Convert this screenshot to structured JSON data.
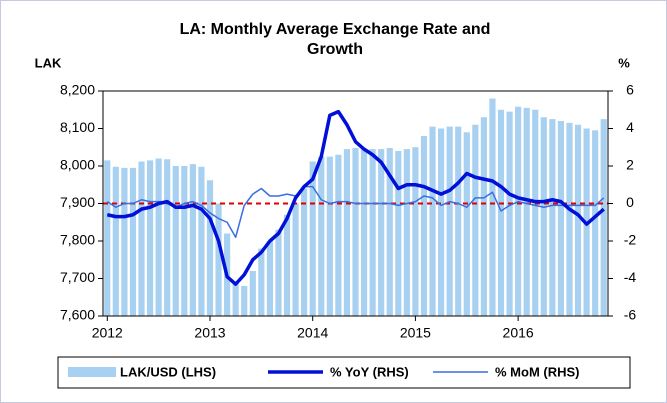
{
  "chart_data": {
    "type": "bar_line",
    "title": "LA: Monthly Average Exchange Rate and Growth",
    "y_label": "LAK",
    "y2_label": "%",
    "categories": [
      "2012",
      null,
      null,
      null,
      null,
      null,
      null,
      null,
      null,
      null,
      null,
      null,
      "2013",
      null,
      null,
      null,
      null,
      null,
      null,
      null,
      null,
      null,
      null,
      null,
      "2014",
      null,
      null,
      null,
      null,
      null,
      null,
      null,
      null,
      null,
      null,
      null,
      "2015",
      null,
      null,
      null,
      null,
      null,
      null,
      null,
      null,
      null,
      null,
      null,
      "2016",
      null,
      null,
      null,
      null,
      null,
      null,
      null,
      null,
      null,
      null
    ],
    "series": [
      {
        "name": "LAK/USD (LHS)",
        "type": "bar",
        "axis": "y",
        "color": "#a8d0f0",
        "values": [
          8015,
          7998,
          7995,
          7995,
          8012,
          8015,
          8020,
          8018,
          8000,
          8000,
          8005,
          7998,
          7962,
          7900,
          7820,
          7690,
          7680,
          7720,
          7780,
          7800,
          7830,
          7870,
          7900,
          7940,
          8012,
          8025,
          8025,
          8030,
          8045,
          8048,
          8045,
          8045,
          8045,
          8048,
          8040,
          8045,
          8050,
          8080,
          8105,
          8100,
          8105,
          8105,
          8090,
          8110,
          8130,
          8180,
          8150,
          8145,
          8158,
          8155,
          8150,
          8130,
          8125,
          8120,
          8115,
          8110,
          8100,
          8095,
          8125
        ]
      },
      {
        "name": "% YoY (RHS)",
        "type": "line",
        "axis": "y2",
        "color": "#0010d8",
        "line_width": 3.5,
        "values": [
          -0.6,
          -0.7,
          -0.7,
          -0.6,
          -0.3,
          -0.2,
          0.0,
          0.1,
          -0.2,
          -0.2,
          -0.1,
          -0.3,
          -0.8,
          -2.0,
          -3.9,
          -4.3,
          -3.8,
          -3.0,
          -2.6,
          -2.0,
          -1.6,
          -0.8,
          0.3,
          0.9,
          1.3,
          2.5,
          4.7,
          4.9,
          4.2,
          3.3,
          2.9,
          2.6,
          2.2,
          1.5,
          0.8,
          1.0,
          1.0,
          0.9,
          0.7,
          0.5,
          0.7,
          1.1,
          1.6,
          1.4,
          1.3,
          1.2,
          0.9,
          0.5,
          0.3,
          0.2,
          0.1,
          0.1,
          0.2,
          0.1,
          -0.3,
          -0.6,
          -1.1,
          -0.7,
          -0.3
        ]
      },
      {
        "name": "% MoM (RHS)",
        "type": "line",
        "axis": "y2",
        "color": "#3a6fe0",
        "line_width": 1.5,
        "values": [
          0.1,
          -0.2,
          0.0,
          0.0,
          0.2,
          0.1,
          0.1,
          0.0,
          -0.2,
          0.0,
          0.1,
          -0.1,
          -0.5,
          -0.8,
          -1.0,
          -1.8,
          -0.1,
          0.5,
          0.8,
          0.4,
          0.4,
          0.5,
          0.4,
          0.9,
          0.9,
          0.2,
          0.0,
          0.1,
          0.1,
          0.0,
          0.0,
          0.0,
          0.0,
          0.0,
          -0.1,
          0.0,
          0.1,
          0.4,
          0.3,
          -0.1,
          0.1,
          0.0,
          -0.2,
          0.3,
          0.3,
          0.6,
          -0.4,
          -0.1,
          0.1,
          0.0,
          -0.1,
          -0.2,
          -0.1,
          -0.1,
          -0.1,
          -0.1,
          -0.1,
          -0.1,
          0.3
        ]
      }
    ],
    "ylim": [
      7600,
      8200
    ],
    "yticks": [
      {
        "value": 7600,
        "label": "7,600"
      },
      {
        "value": 7700,
        "label": "7,700"
      },
      {
        "value": 7800,
        "label": "7,800"
      },
      {
        "value": 7900,
        "label": "7,900"
      },
      {
        "value": 8000,
        "label": "8,000"
      },
      {
        "value": 8100,
        "label": "8,100"
      },
      {
        "value": 8200,
        "label": "8,200"
      }
    ],
    "y2lim": [
      -6,
      6
    ],
    "y2ticks": [
      -6,
      -4,
      -2,
      0,
      2,
      4,
      6
    ],
    "reference_line": {
      "value": 0,
      "axis": "y2",
      "color": "#e00000"
    },
    "legend": "bottom"
  }
}
